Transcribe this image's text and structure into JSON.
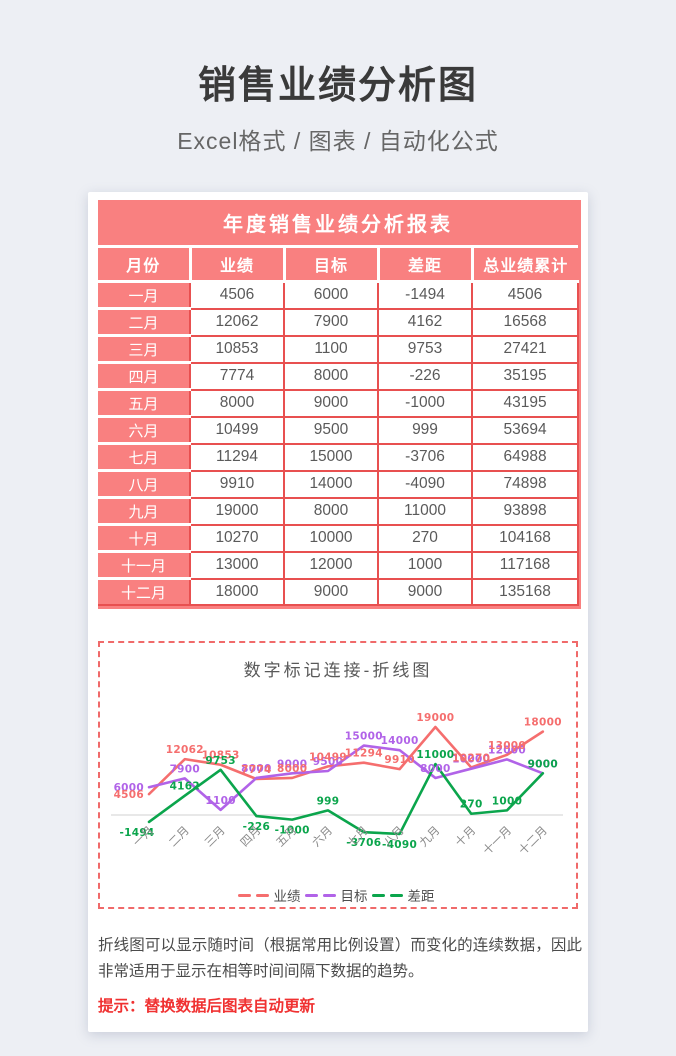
{
  "page": {
    "title": "销售业绩分析图",
    "subtitle": "Excel格式 / 图表 / 自动化公式"
  },
  "table": {
    "title": "年度销售业绩分析报表",
    "columns": [
      "月份",
      "业绩",
      "目标",
      "差距",
      "总业绩累计"
    ],
    "rows": [
      [
        "一月",
        "4506",
        "6000",
        "-1494",
        "4506"
      ],
      [
        "二月",
        "12062",
        "7900",
        "4162",
        "16568"
      ],
      [
        "三月",
        "10853",
        "1100",
        "9753",
        "27421"
      ],
      [
        "四月",
        "7774",
        "8000",
        "-226",
        "35195"
      ],
      [
        "五月",
        "8000",
        "9000",
        "-1000",
        "43195"
      ],
      [
        "六月",
        "10499",
        "9500",
        "999",
        "53694"
      ],
      [
        "七月",
        "11294",
        "15000",
        "-3706",
        "64988"
      ],
      [
        "八月",
        "9910",
        "14000",
        "-4090",
        "74898"
      ],
      [
        "九月",
        "19000",
        "8000",
        "11000",
        "93898"
      ],
      [
        "十月",
        "10270",
        "10000",
        "270",
        "104168"
      ],
      [
        "十一月",
        "13000",
        "12000",
        "1000",
        "117168"
      ],
      [
        "十二月",
        "18000",
        "9000",
        "9000",
        "135168"
      ]
    ]
  },
  "chart_data": {
    "type": "line",
    "title": "数字标记连接-折线图",
    "categories": [
      "一月",
      "二月",
      "三月",
      "四月",
      "五月",
      "六月",
      "七月",
      "八月",
      "九月",
      "十月",
      "十一月",
      "十二月"
    ],
    "series": [
      {
        "name": "业绩",
        "color": "#f56e6e",
        "values": [
          4506,
          12062,
          10853,
          7774,
          8000,
          10499,
          11294,
          9910,
          19000,
          10270,
          13000,
          18000
        ]
      },
      {
        "name": "目标",
        "color": "#b163e8",
        "values": [
          6000,
          7900,
          1100,
          8000,
          9000,
          9500,
          15000,
          14000,
          8000,
          10000,
          12000,
          9000
        ]
      },
      {
        "name": "差距",
        "color": "#0ba54c",
        "values": [
          -1494,
          4162,
          9753,
          -226,
          -1000,
          999,
          -3706,
          -4090,
          11000,
          270,
          1000,
          9000
        ]
      }
    ],
    "data_labels": true,
    "grid": false,
    "baseline": 0,
    "ylim": [
      -4090,
      19000
    ],
    "legend_position": "bottom",
    "baseline_color": "#d9d9d9"
  },
  "description": {
    "text": "折线图可以显示随时间（根据常用比例设置）而变化的连续数据，因此非常适用于显示在相等时间间隔下数据的趋势。",
    "tip": "提示：替换数据后图表自动更新"
  },
  "colors": {
    "page_bg": "#edeff4",
    "table_fill": "#f98080",
    "table_border": "#e85050",
    "chart_frame": "#f06a6a",
    "tip_red": "#f03131"
  }
}
